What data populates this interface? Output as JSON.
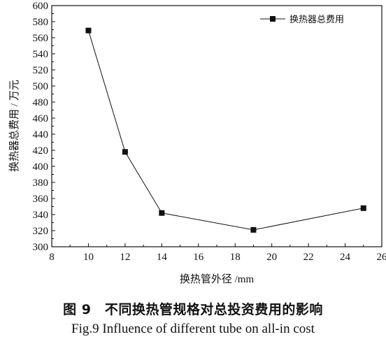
{
  "chart_data": {
    "type": "line",
    "xlabel": "换热管外径 /mm",
    "ylabel": "换热器总费用 / 万元",
    "xlim": [
      8,
      26
    ],
    "ylim": [
      300,
      600
    ],
    "x_ticks": [
      8,
      10,
      12,
      14,
      16,
      18,
      20,
      22,
      24,
      26
    ],
    "y_ticks": [
      300,
      320,
      340,
      360,
      380,
      400,
      420,
      440,
      460,
      480,
      500,
      520,
      540,
      560,
      580,
      600
    ],
    "grid": false,
    "legend_position": "top-right",
    "series": [
      {
        "name": "换热器总费用",
        "marker": "square",
        "color": "#111111",
        "x": [
          10,
          12,
          14,
          19,
          25
        ],
        "y": [
          569,
          418,
          342,
          321,
          348
        ]
      }
    ]
  },
  "captions": {
    "cn": "图 9　不同换热管规格对总投资费用的影响",
    "en": "Fig.9  Influence of different tube on all-in cost"
  }
}
